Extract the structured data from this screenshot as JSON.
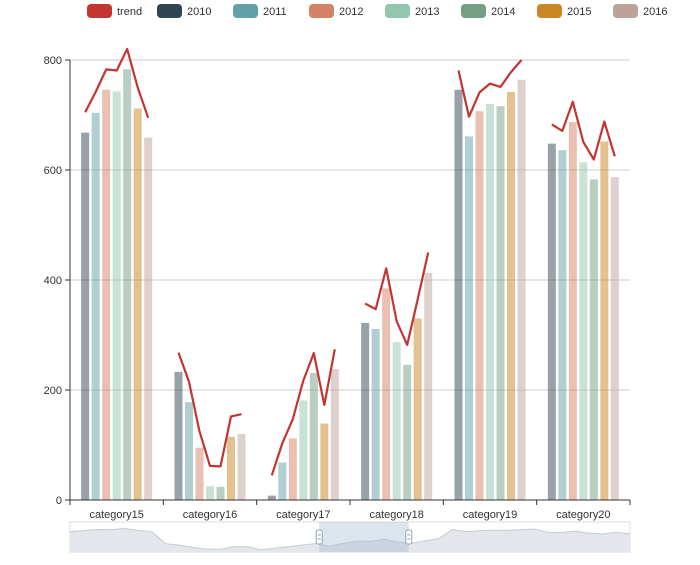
{
  "chart_data": {
    "type": "bar",
    "categories": [
      "category15",
      "category16",
      "category17",
      "category18",
      "category19",
      "category20"
    ],
    "ylim": [
      0,
      800
    ],
    "yticks": [
      0,
      200,
      400,
      600,
      800
    ],
    "grid": true,
    "legend_position": "top-center",
    "series": [
      {
        "name": "2010",
        "color": "#2f4554",
        "values": [
          668,
          233,
          8,
          322,
          746,
          648
        ]
      },
      {
        "name": "2011",
        "color": "#61a0a8",
        "values": [
          704,
          178,
          68,
          311,
          661,
          636
        ]
      },
      {
        "name": "2012",
        "color": "#d48265",
        "values": [
          746,
          95,
          112,
          385,
          707,
          687
        ]
      },
      {
        "name": "2013",
        "color": "#91c7ae",
        "values": [
          743,
          25,
          181,
          287,
          720,
          614
        ]
      },
      {
        "name": "2014",
        "color": "#749f83",
        "values": [
          783,
          24,
          231,
          246,
          716,
          583
        ]
      },
      {
        "name": "2015",
        "color": "#ca8622",
        "values": [
          712,
          115,
          139,
          330,
          742,
          652
        ]
      },
      {
        "name": "2016",
        "color": "#bda29a",
        "values": [
          659,
          120,
          238,
          413,
          764,
          587
        ]
      }
    ],
    "trend": {
      "name": "trend",
      "color": "#c23531",
      "values": [
        [
          705,
          742,
          783,
          781,
          820,
          750,
          695
        ],
        [
          268,
          215,
          125,
          62,
          61,
          152,
          156
        ],
        [
          45,
          103,
          147,
          217,
          267,
          173,
          274
        ],
        [
          357,
          347,
          421,
          325,
          282,
          365,
          450
        ],
        [
          781,
          697,
          741,
          757,
          751,
          778,
          800
        ],
        [
          683,
          671,
          724,
          651,
          619,
          688,
          625
        ]
      ]
    }
  },
  "data_zoom": {
    "range_start": 0.445,
    "range_end": 0.605
  }
}
